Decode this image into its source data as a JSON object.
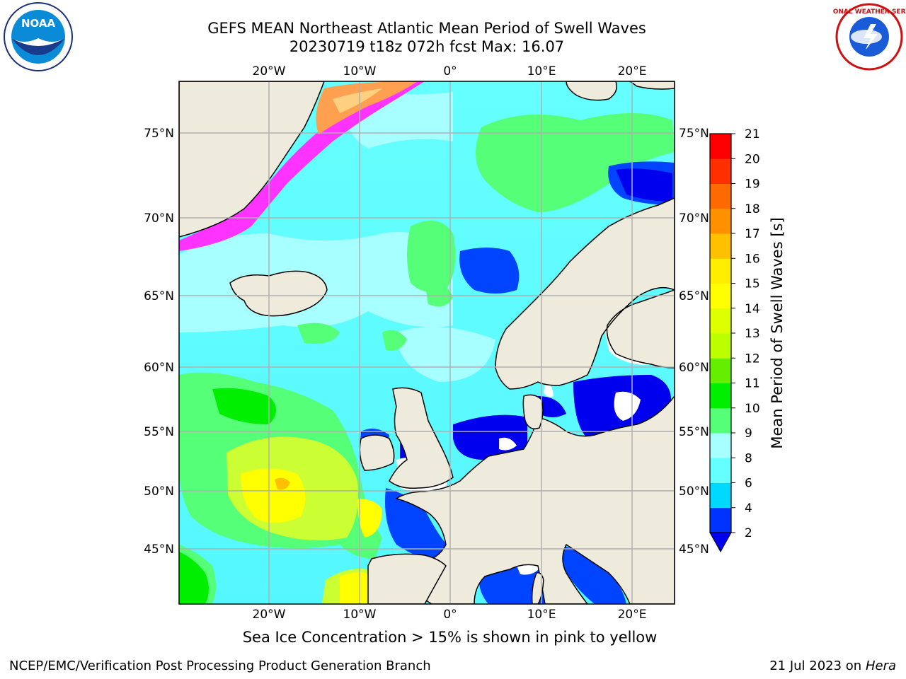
{
  "header": {
    "title_line1": "GEFS MEAN Northeast Atlantic Mean Period of Swell Waves",
    "title_line2": "20230719 t18z 072h fcst   Max: 16.07"
  },
  "logos": {
    "left": "noaa-logo",
    "left_text": "NOAA",
    "right": "national-weather-service-logo",
    "right_text": "NATIONAL WEATHER SERVICE"
  },
  "map": {
    "top_lon_labels": [
      "20°W",
      "10°W",
      "0°",
      "10°E",
      "20°E"
    ],
    "bottom_lon_labels": [
      "20°W",
      "10°W",
      "0°",
      "10°E",
      "20°E"
    ],
    "left_lat_labels": [
      "75°N",
      "70°N",
      "65°N",
      "60°N",
      "55°N",
      "50°N",
      "45°N"
    ],
    "right_lat_labels": [
      "75°N",
      "70°N",
      "65°N",
      "60°N",
      "55°N",
      "50°N",
      "45°N"
    ],
    "colors": {
      "ocean_background": "#66ffff",
      "land": "#eeeadc",
      "ice_pink": "#ff33ff",
      "ice_orange": "#ffa050",
      "grid": "#b0b0b0"
    }
  },
  "colorbar": {
    "label": "Mean Period of Swell Waves [s]",
    "ticks": [
      "2",
      "4",
      "6",
      "8",
      "9",
      "10",
      "11",
      "12",
      "13",
      "14",
      "15",
      "16",
      "17",
      "18",
      "19",
      "20",
      "21"
    ],
    "colors": [
      "#0033ff",
      "#00d9ff",
      "#66ffff",
      "#a8ffff",
      "#55ff77",
      "#00ee00",
      "#66ee00",
      "#bbff00",
      "#ddff00",
      "#ffff00",
      "#ffee00",
      "#ffc000",
      "#ff9000",
      "#ff6a00",
      "#ff3000",
      "#ff0000"
    ],
    "under_color": "#0000ee"
  },
  "footnote": "Sea Ice Concentration > 15% is shown in pink to yellow",
  "footer": {
    "left": "NCEP/EMC/Verification Post Processing Product Generation Branch",
    "right_date": "21 Jul 2023 on ",
    "right_host": "Hera"
  }
}
